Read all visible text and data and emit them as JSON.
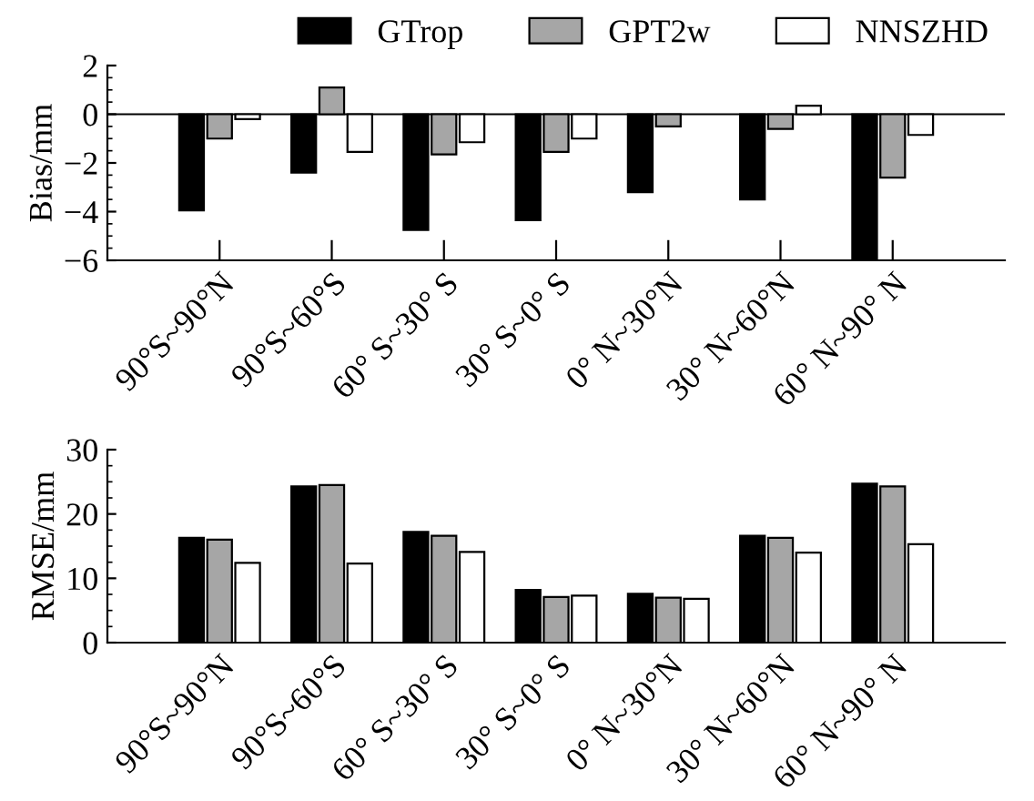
{
  "chart_data": [
    {
      "type": "bar",
      "ylabel": "Bias/mm",
      "categories": [
        "90°S~90°N",
        "90°S~60°S",
        "60° S~30° S",
        "30° S~0° S",
        "0° N~30°N",
        "30° N~60°N",
        "60° N~90° N"
      ],
      "series": [
        {
          "name": "GTrop",
          "color": "#000000",
          "values": [
            -3.95,
            -2.4,
            -4.75,
            -4.35,
            -3.2,
            -3.5,
            -5.95
          ]
        },
        {
          "name": "GPT2w",
          "color": "#a6a6a6",
          "values": [
            -1.0,
            1.1,
            -1.65,
            -1.55,
            -0.5,
            -0.6,
            -2.6
          ]
        },
        {
          "name": "NNSZHD",
          "color": "#ffffff",
          "values": [
            -0.2,
            -1.55,
            -1.15,
            -1.0,
            null,
            0.35,
            -0.85
          ]
        }
      ],
      "ylim": [
        -6,
        2
      ],
      "yticks": [
        -6,
        -4,
        -2,
        0,
        2
      ],
      "ref_lines": [
        {
          "axis": "y",
          "value": 0
        }
      ],
      "legend": "top right",
      "grid": false
    },
    {
      "type": "bar",
      "ylabel": "RMSE/mm",
      "categories": [
        "90°S~90°N",
        "90°S~60°S",
        "60° S~30° S",
        "30° S~0° S",
        "0° N~30°N",
        "30° N~60°N",
        "60° N~90° N"
      ],
      "series": [
        {
          "color": "#000000",
          "values": [
            16.3,
            24.3,
            17.2,
            8.2,
            7.6,
            16.6,
            24.7
          ]
        },
        {
          "color": "#a6a6a6",
          "values": [
            16.0,
            24.5,
            16.6,
            7.1,
            7.0,
            16.3,
            24.3
          ]
        },
        {
          "color": "#ffffff",
          "values": [
            12.4,
            12.3,
            14.1,
            7.3,
            6.8,
            14.0,
            15.3
          ]
        }
      ],
      "ylim": [
        0,
        30
      ],
      "yticks": [
        0,
        10,
        20,
        30
      ],
      "legend": false,
      "grid": false
    }
  ]
}
